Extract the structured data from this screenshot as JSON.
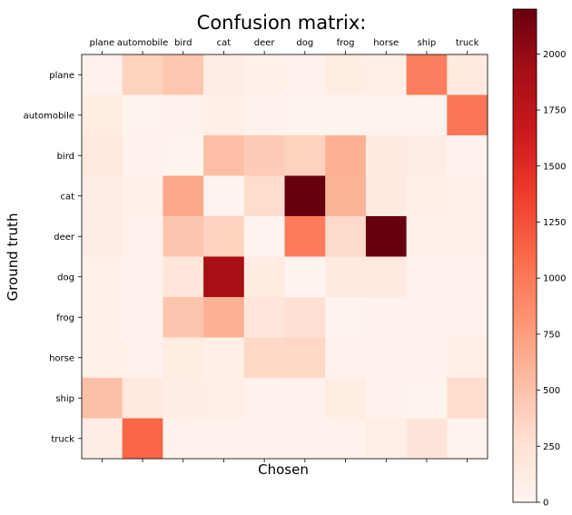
{
  "chart_data": {
    "type": "heatmap",
    "title": "Confusion matrix:",
    "xlabel": "Chosen",
    "ylabel": "Ground truth",
    "x_categories": [
      "plane",
      "automobile",
      "bird",
      "cat",
      "deer",
      "dog",
      "frog",
      "horse",
      "ship",
      "truck"
    ],
    "y_categories": [
      "plane",
      "automobile",
      "bird",
      "cat",
      "deer",
      "dog",
      "frog",
      "horse",
      "ship",
      "truck"
    ],
    "values": [
      [
        40,
        380,
        470,
        100,
        60,
        50,
        120,
        80,
        960,
        150
      ],
      [
        120,
        20,
        40,
        80,
        40,
        30,
        30,
        30,
        30,
        1020
      ],
      [
        160,
        50,
        20,
        520,
        420,
        380,
        620,
        140,
        100,
        40
      ],
      [
        100,
        70,
        680,
        10,
        300,
        2200,
        600,
        140,
        80,
        60
      ],
      [
        100,
        50,
        480,
        380,
        10,
        980,
        320,
        2200,
        60,
        60
      ],
      [
        60,
        50,
        200,
        1900,
        130,
        10,
        150,
        150,
        40,
        50
      ],
      [
        60,
        40,
        480,
        620,
        200,
        260,
        20,
        50,
        40,
        40
      ],
      [
        70,
        50,
        110,
        80,
        330,
        340,
        50,
        40,
        50,
        80
      ],
      [
        510,
        160,
        100,
        90,
        50,
        50,
        120,
        50,
        30,
        290
      ],
      [
        100,
        1120,
        40,
        40,
        40,
        40,
        40,
        90,
        220,
        30
      ]
    ],
    "colorscale": "Reds",
    "colorbar_range": [
      0,
      2200
    ],
    "colorbar_ticks": [
      "0",
      "250",
      "500",
      "750",
      "1000",
      "1250",
      "1500",
      "1750",
      "2000"
    ],
    "grid": false
  }
}
